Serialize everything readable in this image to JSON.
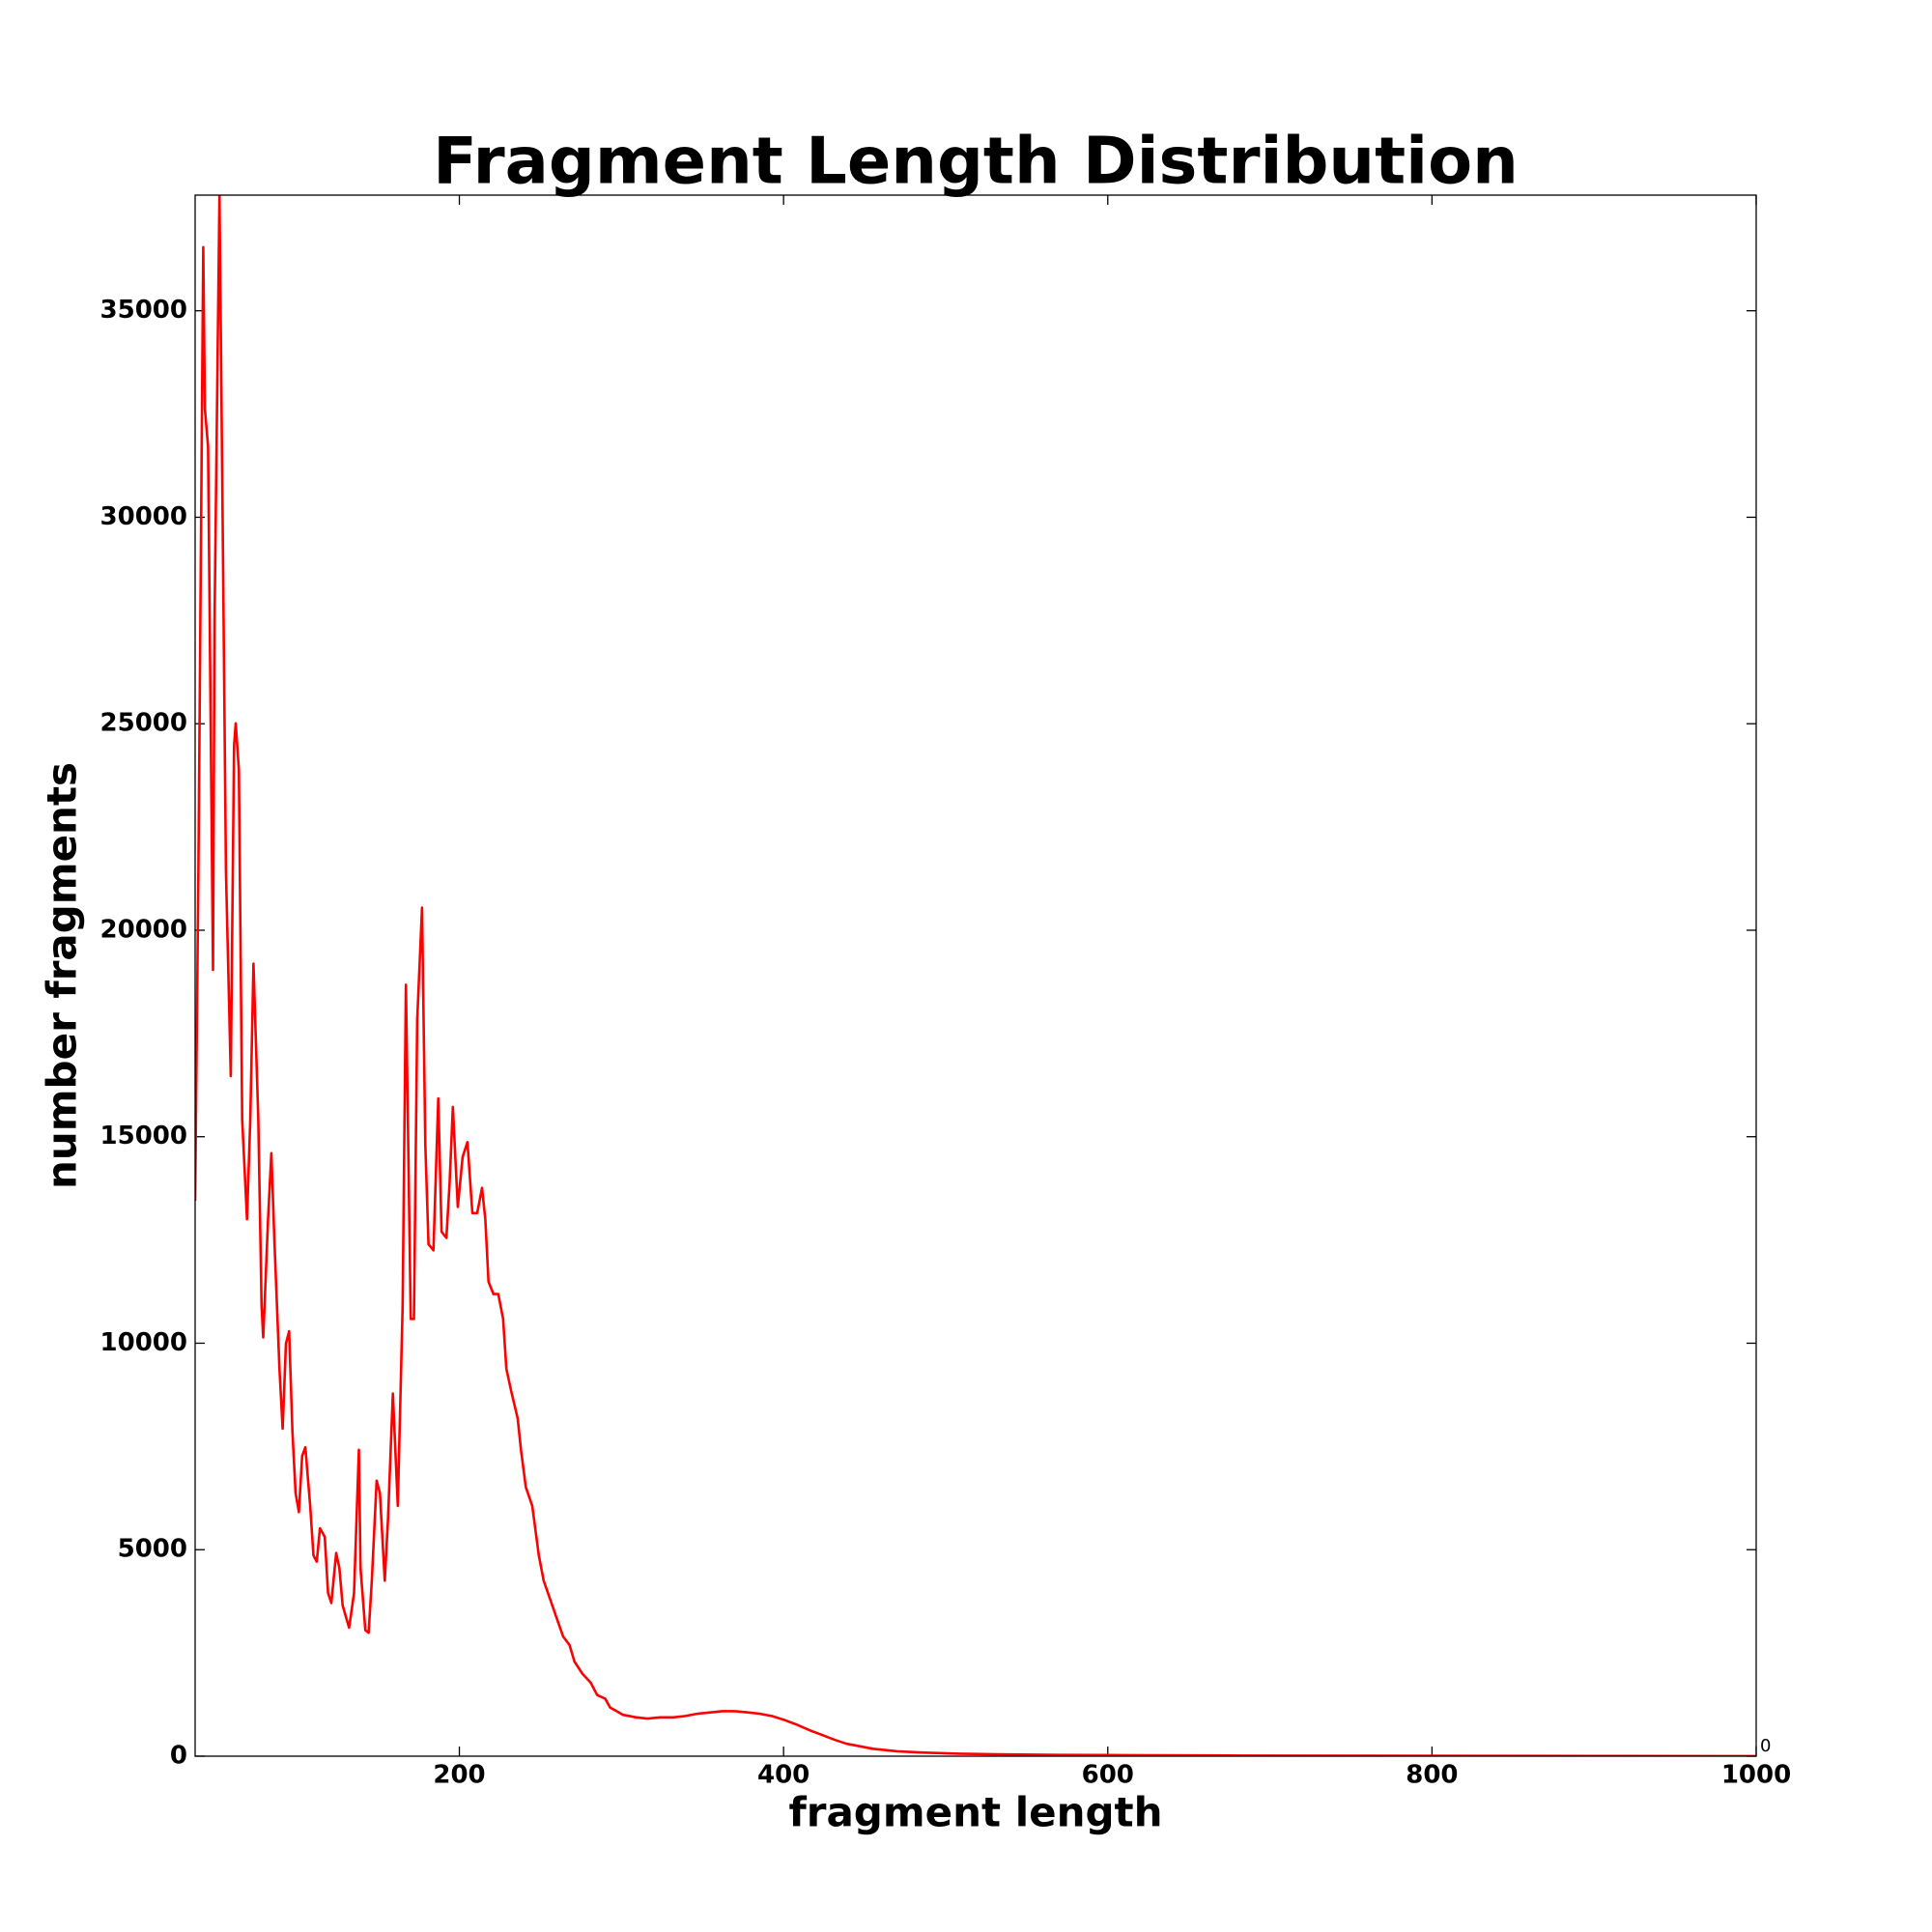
{
  "chart_data": {
    "type": "line",
    "title": "Fragment Length Distribution",
    "x_label": "fragment length",
    "y_label": "number fragments",
    "offset_text": "0",
    "color": "#ff0000",
    "xlim": [
      37,
      1000
    ],
    "ylim": [
      0,
      37800
    ],
    "xticks": [
      200,
      400,
      600,
      800,
      1000
    ],
    "yticks": [
      0,
      5000,
      10000,
      15000,
      20000,
      25000,
      30000,
      35000
    ],
    "x": [
      37,
      39,
      42,
      43,
      45,
      48,
      49,
      52,
      54,
      56,
      59,
      61,
      62,
      64,
      66,
      69,
      71,
      73,
      76,
      78,
      79,
      82,
      84,
      86,
      89,
      91,
      93,
      95,
      97,
      99,
      101,
      103,
      105,
      108,
      110,
      112,
      114,
      117,
      119,
      121,
      124,
      126,
      128,
      132,
      135,
      138,
      139,
      142,
      144,
      146,
      149,
      151,
      154,
      156,
      159,
      162,
      165,
      167,
      170,
      172,
      174,
      177,
      179,
      181,
      184,
      187,
      189,
      192,
      194,
      196,
      199,
      202,
      205,
      208,
      211,
      214,
      216,
      218,
      221,
      224,
      227,
      229,
      232,
      236,
      238,
      241,
      245,
      249,
      252,
      256,
      260,
      264,
      268,
      271,
      276,
      281,
      285,
      290,
      293,
      297,
      301,
      309,
      316,
      324,
      332,
      339,
      347,
      355,
      362,
      370,
      378,
      385,
      393,
      401,
      409,
      416,
      424,
      432,
      439,
      447,
      455,
      470,
      485,
      508,
      532,
      570,
      609,
      685,
      762,
      839,
      916,
      1000
    ],
    "values": [
      13450,
      21450,
      36540,
      32620,
      31710,
      19040,
      27490,
      37800,
      29900,
      21450,
      16470,
      24470,
      25010,
      23870,
      15420,
      13000,
      15420,
      19190,
      15420,
      10890,
      10140,
      13000,
      14600,
      12400,
      9380,
      7930,
      9990,
      10290,
      7870,
      6370,
      5910,
      7270,
      7480,
      6060,
      4860,
      4710,
      5520,
      5310,
      3950,
      3710,
      4920,
      4560,
      3650,
      3110,
      3950,
      7420,
      4560,
      3050,
      2990,
      4250,
      6670,
      6370,
      4250,
      5760,
      8780,
      6060,
      10890,
      18680,
      10590,
      10590,
      17830,
      20550,
      14810,
      12400,
      12250,
      15930,
      12700,
      12550,
      13910,
      15720,
      13300,
      14510,
      14870,
      13150,
      13150,
      13760,
      13000,
      11490,
      11190,
      11190,
      10590,
      9380,
      8840,
      8180,
      7420,
      6520,
      6060,
      4860,
      4250,
      3800,
      3350,
      2900,
      2690,
      2290,
      1990,
      1780,
      1480,
      1390,
      1180,
      1090,
      1000,
      940,
      910,
      940,
      940,
      970,
      1030,
      1060,
      1090,
      1090,
      1060,
      1030,
      970,
      870,
      750,
      630,
      510,
      390,
      300,
      240,
      180,
      120,
      90,
      60,
      45,
      30,
      25,
      15,
      10,
      8,
      5,
      3
    ]
  }
}
